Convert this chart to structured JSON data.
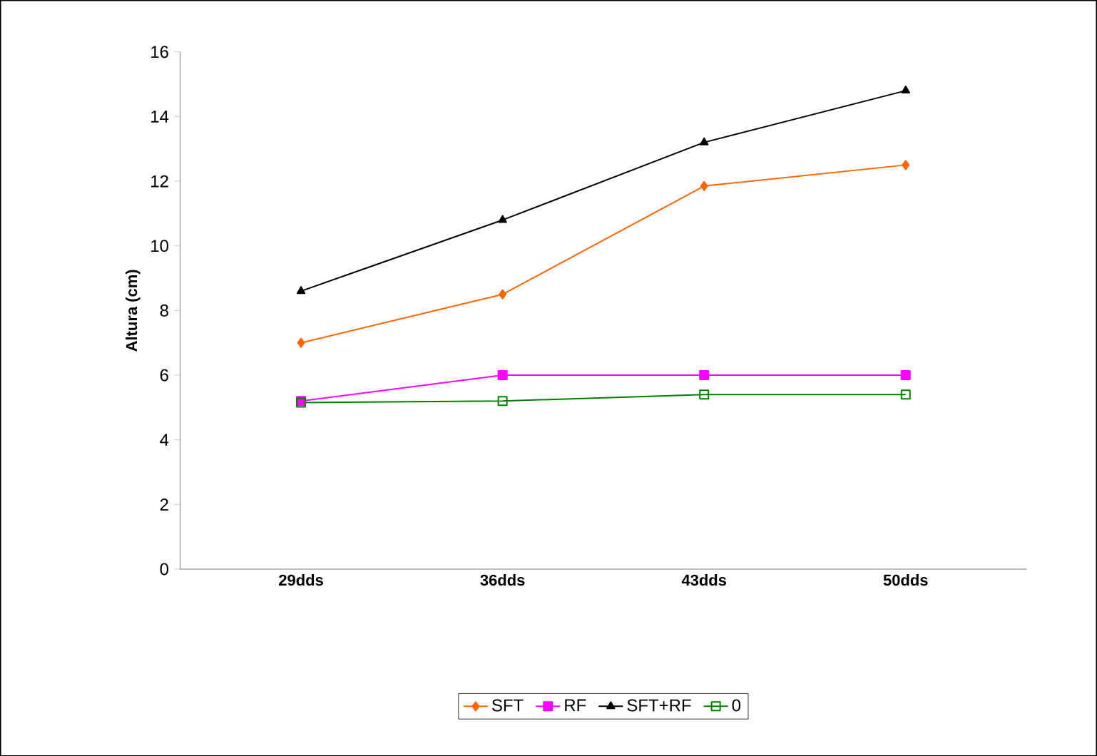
{
  "chart_data": {
    "type": "line",
    "ylabel": "Altura (cm)",
    "categories": [
      "29dds",
      "36dds",
      "43dds",
      "50dds"
    ],
    "series": [
      {
        "name": "SFT",
        "color": "#ff6600",
        "marker": "diamond",
        "values": [
          7.0,
          8.5,
          11.85,
          12.5
        ]
      },
      {
        "name": "RF",
        "color": "#ff00ff",
        "marker": "square",
        "values": [
          5.2,
          6.0,
          6.0,
          6.0
        ]
      },
      {
        "name": "SFT+RF",
        "color": "#000000",
        "marker": "triangle",
        "values": [
          8.6,
          10.8,
          13.2,
          14.8
        ]
      },
      {
        "name": "0",
        "color": "#008000",
        "marker": "square*open",
        "values": [
          5.15,
          5.2,
          5.4,
          5.4
        ]
      }
    ],
    "ylim": [
      0,
      16
    ],
    "yticks": [
      0,
      2,
      4,
      6,
      8,
      10,
      12,
      14,
      16
    ],
    "grid": false,
    "legend": "bottom"
  }
}
